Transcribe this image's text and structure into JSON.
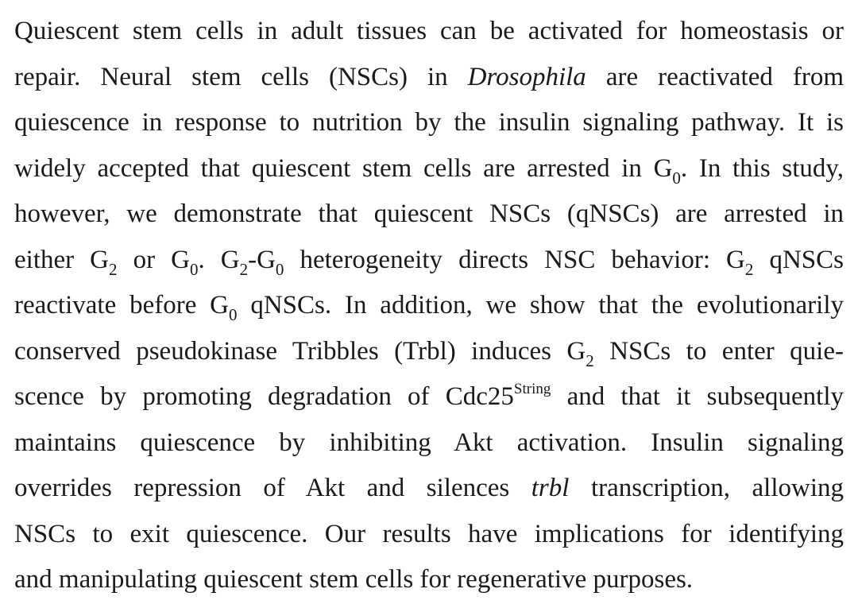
{
  "abstract": {
    "lines": [
      [
        {
          "t": "Quiescent stem cells in adult tissues can be activated for homeostasis or"
        }
      ],
      [
        {
          "t": "repair. Neural stem cells (NSCs) in "
        },
        {
          "t": "Drosophila",
          "s": "i"
        },
        {
          "t": " are reactivated from"
        }
      ],
      [
        {
          "t": "quiescence in response to nutrition by the insulin signaling pathway. It is"
        }
      ],
      [
        {
          "t": "widely accepted that quiescent stem cells are arrested in G"
        },
        {
          "t": "0",
          "s": "sub"
        },
        {
          "t": ". In this study,"
        }
      ],
      [
        {
          "t": "however, we demonstrate that quiescent NSCs (qNSCs) are arrested in"
        }
      ],
      [
        {
          "t": "either G"
        },
        {
          "t": "2",
          "s": "sub"
        },
        {
          "t": " or G"
        },
        {
          "t": "0",
          "s": "sub"
        },
        {
          "t": ". G"
        },
        {
          "t": "2",
          "s": "sub"
        },
        {
          "t": "-G"
        },
        {
          "t": "0",
          "s": "sub"
        },
        {
          "t": " heterogeneity directs NSC behavior: G"
        },
        {
          "t": "2",
          "s": "sub"
        },
        {
          "t": " qNSCs"
        }
      ],
      [
        {
          "t": "reactivate before G"
        },
        {
          "t": "0",
          "s": "sub"
        },
        {
          "t": " qNSCs. In addition, we show that the evolutionarily"
        }
      ],
      [
        {
          "t": "conserved pseudokinase Tribbles (Trbl) induces G"
        },
        {
          "t": "2",
          "s": "sub"
        },
        {
          "t": " NSCs to enter quie-"
        }
      ],
      [
        {
          "t": "scence by promoting degradation of Cdc25"
        },
        {
          "t": "String",
          "s": "sup"
        },
        {
          "t": " and that it subsequently"
        }
      ],
      [
        {
          "t": "maintains quiescence by inhibiting Akt activation. Insulin signaling"
        }
      ],
      [
        {
          "t": "overrides repression of Akt and silences "
        },
        {
          "t": "trbl",
          "s": "i"
        },
        {
          "t": " transcription, allowing"
        }
      ],
      [
        {
          "t": "NSCs to exit quiescence. Our results have implications for identifying"
        }
      ],
      [
        {
          "t": "and manipulating quiescent stem cells for regenerative purposes."
        }
      ]
    ]
  }
}
